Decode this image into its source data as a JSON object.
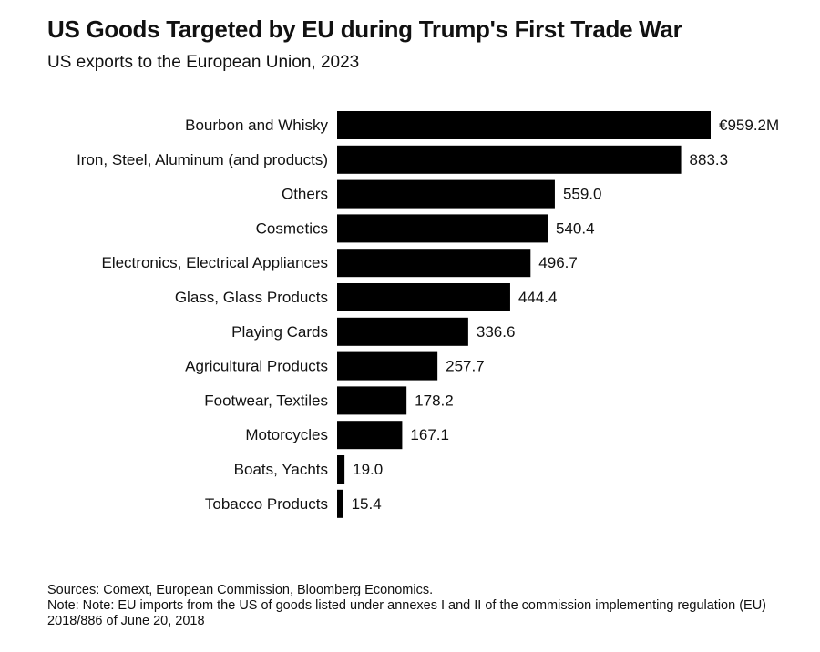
{
  "chart_data": {
    "type": "bar",
    "orientation": "horizontal",
    "title": "US Goods Targeted by EU during Trump's First Trade War",
    "subtitle": "US exports to the European Union, 2023",
    "categories": [
      "Bourbon and Whisky",
      "Iron, Steel, Aluminum (and products)",
      "Others",
      "Cosmetics",
      "Electronics, Electrical Appliances",
      "Glass, Glass Products",
      "Playing Cards",
      "Agricultural Products",
      "Footwear, Textiles",
      "Motorcycles",
      "Boats, Yachts",
      "Tobacco Products"
    ],
    "values": [
      959.2,
      883.3,
      559.0,
      540.4,
      496.7,
      444.4,
      336.6,
      257.7,
      178.2,
      167.1,
      19.0,
      15.4
    ],
    "value_labels": [
      "€959.2M",
      "883.3",
      "559.0",
      "540.4",
      "496.7",
      "444.4",
      "336.6",
      "257.7",
      "178.2",
      "167.1",
      "19.0",
      "15.4"
    ],
    "xlim": [
      0,
      959.2
    ],
    "grid": false,
    "bar_color": "#000000"
  },
  "footer": {
    "sources": "Sources: Comext, European Commission, Bloomberg Economics.",
    "note": "Note: Note: EU imports from the US of goods listed under annexes I and II of the commission implementing regulation (EU) 2018/886 of June 20, 2018"
  }
}
